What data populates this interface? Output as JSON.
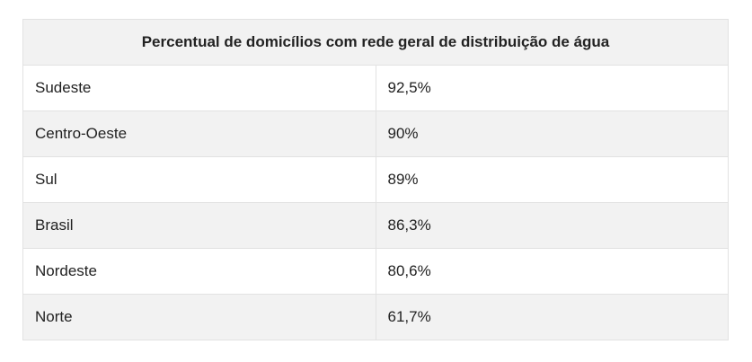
{
  "table": {
    "title": "Percentual de domicílios com rede geral de distribuição de água",
    "rows": [
      {
        "region": "Sudeste",
        "value": "92,5%"
      },
      {
        "region": "Centro-Oeste",
        "value": "90%"
      },
      {
        "region": "Sul",
        "value": "89%"
      },
      {
        "region": "Brasil",
        "value": "86,3%"
      },
      {
        "region": "Nordeste",
        "value": "80,6%"
      },
      {
        "region": "Norte",
        "value": "61,7%"
      }
    ]
  }
}
